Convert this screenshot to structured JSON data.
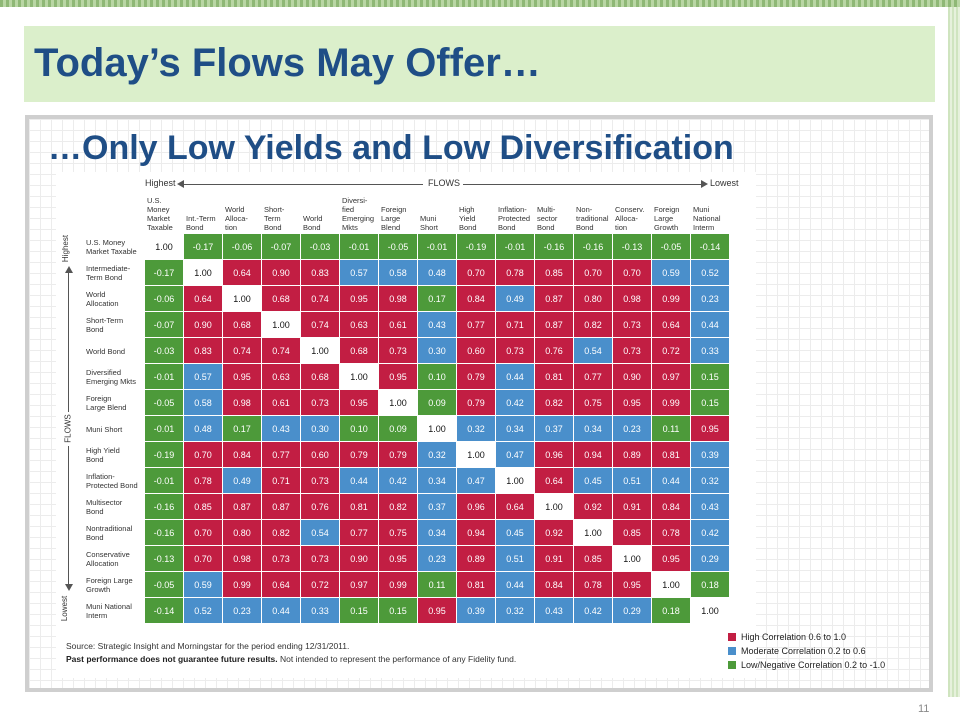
{
  "slide": {
    "title": "Today’s Flows May Offer…",
    "subtitle": "…Only Low Yields and Low Diversification",
    "page_number": "11",
    "colors": {
      "high": "#c21e43",
      "moderate": "#4a8fcb",
      "low": "#4d9a3a",
      "title": "#1f4e86",
      "title_band": "#dbefcb"
    }
  },
  "chart_data": {
    "type": "heatmap",
    "flows_label": "FLOWS",
    "highest_label": "Highest",
    "lowest_label": "Lowest",
    "columns": [
      [
        "U.S.",
        "Money",
        "Market",
        "Taxable"
      ],
      [
        "Int.-Term",
        "Bond"
      ],
      [
        "World",
        "Alloca-",
        "tion"
      ],
      [
        "Short-",
        "Term",
        "Bond"
      ],
      [
        "World",
        "Bond"
      ],
      [
        "Diversi-",
        "fied",
        "Emerging",
        "Mkts"
      ],
      [
        "Foreign",
        "Large",
        "Blend"
      ],
      [
        "Muni",
        "Short"
      ],
      [
        "High",
        "Yield",
        "Bond"
      ],
      [
        "Inflation-",
        "Protected",
        "Bond"
      ],
      [
        "Multi-",
        "sector",
        "Bond"
      ],
      [
        "Non-",
        "traditional",
        "Bond"
      ],
      [
        "Conserv.",
        "Alloca-",
        "tion"
      ],
      [
        "Foreign",
        "Large",
        "Growth"
      ],
      [
        "Muni",
        "National",
        "Interm"
      ]
    ],
    "rows": [
      [
        "U.S. Money",
        "Market Taxable"
      ],
      [
        "Intermediate-",
        "Term Bond"
      ],
      [
        "World",
        "Allocation"
      ],
      [
        "Short-Term",
        "Bond"
      ],
      [
        "World Bond"
      ],
      [
        "Diversified",
        "Emerging Mkts"
      ],
      [
        "Foreign",
        "Large Blend"
      ],
      [
        "Muni Short"
      ],
      [
        "High Yield",
        "Bond"
      ],
      [
        "Inflation-",
        "Protected Bond"
      ],
      [
        "Multisector",
        "Bond"
      ],
      [
        "Nontraditional",
        "Bond"
      ],
      [
        "Conservative",
        "Allocation"
      ],
      [
        "Foreign Large",
        "Growth"
      ],
      [
        "Muni National",
        "Interm"
      ]
    ],
    "values": [
      [
        "1.00",
        "-0.17",
        "-0.06",
        "-0.07",
        "-0.03",
        "-0.01",
        "-0.05",
        "-0.01",
        "-0.19",
        "-0.01",
        "-0.16",
        "-0.16",
        "-0.13",
        "-0.05",
        "-0.14"
      ],
      [
        "-0.17",
        "1.00",
        "0.64",
        "0.90",
        "0.83",
        "0.57",
        "0.58",
        "0.48",
        "0.70",
        "0.78",
        "0.85",
        "0.70",
        "0.70",
        "0.59",
        "0.52"
      ],
      [
        "-0.06",
        "0.64",
        "1.00",
        "0.68",
        "0.74",
        "0.95",
        "0.98",
        "0.17",
        "0.84",
        "0.49",
        "0.87",
        "0.80",
        "0.98",
        "0.99",
        "0.23"
      ],
      [
        "-0.07",
        "0.90",
        "0.68",
        "1.00",
        "0.74",
        "0.63",
        "0.61",
        "0.43",
        "0.77",
        "0.71",
        "0.87",
        "0.82",
        "0.73",
        "0.64",
        "0.44"
      ],
      [
        "-0.03",
        "0.83",
        "0.74",
        "0.74",
        "1.00",
        "0.68",
        "0.73",
        "0.30",
        "0.60",
        "0.73",
        "0.76",
        "0.54",
        "0.73",
        "0.72",
        "0.33"
      ],
      [
        "-0.01",
        "0.57",
        "0.95",
        "0.63",
        "0.68",
        "1.00",
        "0.95",
        "0.10",
        "0.79",
        "0.44",
        "0.81",
        "0.77",
        "0.90",
        "0.97",
        "0.15"
      ],
      [
        "-0.05",
        "0.58",
        "0.98",
        "0.61",
        "0.73",
        "0.95",
        "1.00",
        "0.09",
        "0.79",
        "0.42",
        "0.82",
        "0.75",
        "0.95",
        "0.99",
        "0.15"
      ],
      [
        "-0.01",
        "0.48",
        "0.17",
        "0.43",
        "0.30",
        "0.10",
        "0.09",
        "1.00",
        "0.32",
        "0.34",
        "0.37",
        "0.34",
        "0.23",
        "0.11",
        "0.95"
      ],
      [
        "-0.19",
        "0.70",
        "0.84",
        "0.77",
        "0.60",
        "0.79",
        "0.79",
        "0.32",
        "1.00",
        "0.47",
        "0.96",
        "0.94",
        "0.89",
        "0.81",
        "0.39"
      ],
      [
        "-0.01",
        "0.78",
        "0.49",
        "0.71",
        "0.73",
        "0.44",
        "0.42",
        "0.34",
        "0.47",
        "1.00",
        "0.64",
        "0.45",
        "0.51",
        "0.44",
        "0.32"
      ],
      [
        "-0.16",
        "0.85",
        "0.87",
        "0.87",
        "0.76",
        "0.81",
        "0.82",
        "0.37",
        "0.96",
        "0.64",
        "1.00",
        "0.92",
        "0.91",
        "0.84",
        "0.43"
      ],
      [
        "-0.16",
        "0.70",
        "0.80",
        "0.82",
        "0.54",
        "0.77",
        "0.75",
        "0.34",
        "0.94",
        "0.45",
        "0.92",
        "1.00",
        "0.85",
        "0.78",
        "0.42"
      ],
      [
        "-0.13",
        "0.70",
        "0.98",
        "0.73",
        "0.73",
        "0.90",
        "0.95",
        "0.23",
        "0.89",
        "0.51",
        "0.91",
        "0.85",
        "1.00",
        "0.95",
        "0.29"
      ],
      [
        "-0.05",
        "0.59",
        "0.99",
        "0.64",
        "0.72",
        "0.97",
        "0.99",
        "0.11",
        "0.81",
        "0.44",
        "0.84",
        "0.78",
        "0.95",
        "1.00",
        "0.18"
      ],
      [
        "-0.14",
        "0.52",
        "0.23",
        "0.44",
        "0.33",
        "0.15",
        "0.15",
        "0.95",
        "0.39",
        "0.32",
        "0.43",
        "0.42",
        "0.29",
        "0.18",
        "1.00"
      ]
    ],
    "legend": [
      {
        "key": "high",
        "label": "High Correlation 0.6 to 1.0",
        "color": "#c21e43"
      },
      {
        "key": "moderate",
        "label": "Moderate Correlation 0.2 to 0.6",
        "color": "#4a8fcb"
      },
      {
        "key": "low",
        "label": "Low/Negative Correlation 0.2 to -1.0",
        "color": "#4d9a3a"
      }
    ],
    "source_line1": "Source: Strategic Insight and Morningstar for the period ending 12/31/2011.",
    "source_bold": "Past performance does not guarantee future results.",
    "source_line2": " Not intended to represent the performance of any Fidelity fund."
  }
}
